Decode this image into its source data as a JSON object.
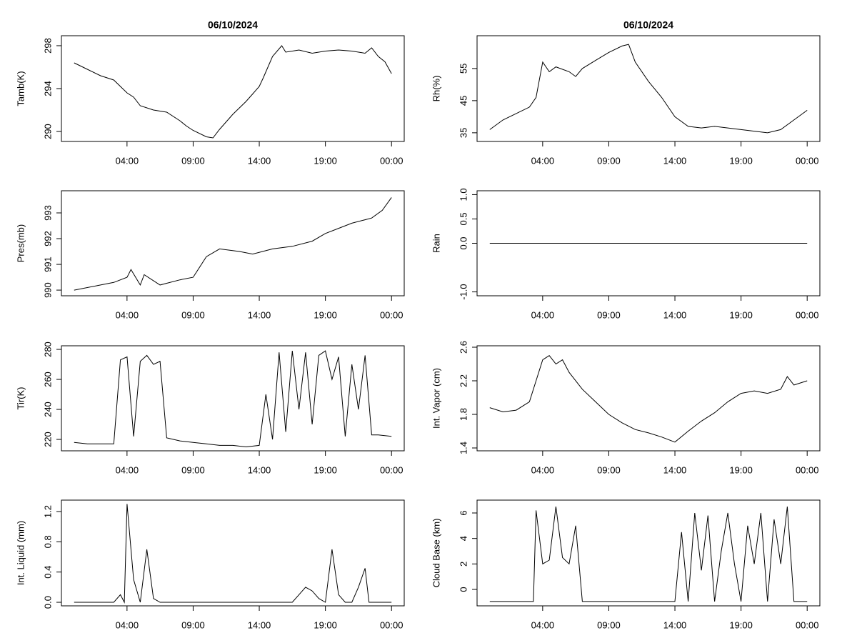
{
  "chart_data": [
    {
      "type": "line",
      "title": "06/10/2024",
      "ylabel": "Tamb(K)",
      "color": "#000000",
      "x": [
        0,
        1,
        2,
        3,
        4,
        4.5,
        5,
        6,
        7,
        8,
        8.5,
        9,
        10,
        10.5,
        11,
        12,
        13,
        13.5,
        14,
        14.3,
        15,
        15.7,
        16,
        17,
        18,
        19,
        20,
        21,
        22,
        22.5,
        23,
        23.5,
        24
      ],
      "values": [
        296.4,
        295.8,
        295.2,
        294.8,
        293.6,
        293.2,
        292.4,
        292,
        291.8,
        291,
        290.5,
        290.1,
        289.5,
        289.4,
        290.2,
        291.6,
        292.8,
        293.5,
        294.2,
        295,
        297,
        298,
        297.4,
        297.6,
        297.3,
        297.5,
        297.6,
        297.5,
        297.3,
        297.8,
        297,
        296.5,
        295.4
      ],
      "xlim": [
        -0.96,
        24.96
      ],
      "ylim": [
        289.07,
        298.93
      ],
      "xticks": [
        {
          "value": 4,
          "label": "04:00"
        },
        {
          "value": 9,
          "label": "09:00"
        },
        {
          "value": 14,
          "label": "14:00"
        },
        {
          "value": 19,
          "label": "19:00"
        },
        {
          "value": 24,
          "label": "00:00"
        }
      ],
      "yticks": [
        290,
        294,
        298
      ]
    },
    {
      "type": "line",
      "title": "06/10/2024",
      "ylabel": "Rh(%)",
      "color": "#000000",
      "x": [
        0,
        1,
        2,
        3,
        3.5,
        4,
        4.5,
        5,
        6,
        6.5,
        7,
        8,
        9,
        10,
        10.5,
        11,
        12,
        13,
        14,
        15,
        16,
        17,
        18,
        19,
        20,
        21,
        22,
        23,
        24
      ],
      "values": [
        36,
        39,
        41,
        43,
        46,
        57,
        54,
        55.5,
        54,
        52.5,
        55,
        57.5,
        60,
        62,
        62.5,
        57,
        51,
        46,
        40,
        37,
        36.5,
        37,
        36.5,
        36,
        35.5,
        35,
        36,
        39,
        42
      ],
      "xlim": [
        -0.96,
        24.96
      ],
      "ylim": [
        32.3,
        65.2
      ],
      "xticks": [
        {
          "value": 4,
          "label": "04:00"
        },
        {
          "value": 9,
          "label": "09:00"
        },
        {
          "value": 14,
          "label": "14:00"
        },
        {
          "value": 19,
          "label": "19:00"
        },
        {
          "value": 24,
          "label": "00:00"
        }
      ],
      "yticks": [
        35,
        45,
        55
      ]
    },
    {
      "type": "line",
      "ylabel": "Pres(mb)",
      "color": "#000000",
      "x": [
        0,
        2,
        3,
        4,
        4.3,
        5,
        5.3,
        6.5,
        8,
        9,
        10,
        11,
        12.5,
        13.5,
        15,
        16.5,
        18,
        19,
        20,
        21,
        22.5,
        23.3,
        24
      ],
      "values": [
        990,
        990.2,
        990.3,
        990.5,
        990.8,
        990.2,
        990.6,
        990.2,
        990.4,
        990.5,
        991.3,
        991.6,
        991.5,
        991.4,
        991.6,
        991.7,
        991.9,
        992.2,
        992.4,
        992.6,
        992.8,
        993.1,
        993.6
      ],
      "xlim": [
        -0.96,
        24.96
      ],
      "ylim": [
        989.78,
        993.86
      ],
      "xticks": [
        {
          "value": 4,
          "label": "04:00"
        },
        {
          "value": 9,
          "label": "09:00"
        },
        {
          "value": 14,
          "label": "14:00"
        },
        {
          "value": 19,
          "label": "19:00"
        },
        {
          "value": 24,
          "label": "00:00"
        }
      ],
      "yticks": [
        990,
        991,
        992,
        993
      ]
    },
    {
      "type": "line",
      "ylabel": "Rain",
      "color": "#000000",
      "x": [
        0,
        24
      ],
      "values": [
        0,
        0
      ],
      "xlim": [
        -0.96,
        24.96
      ],
      "ylim": [
        -1.08,
        1.08
      ],
      "xticks": [
        {
          "value": 4,
          "label": "04:00"
        },
        {
          "value": 9,
          "label": "09:00"
        },
        {
          "value": 14,
          "label": "14:00"
        },
        {
          "value": 19,
          "label": "19:00"
        },
        {
          "value": 24,
          "label": "00:00"
        }
      ],
      "yticks": [
        {
          "value": -1,
          "label": "-1.0"
        },
        {
          "value": 0,
          "label": "0.0"
        },
        0.5,
        {
          "value": 1,
          "label": "1.0"
        }
      ]
    },
    {
      "type": "line",
      "ylabel": "Tir(K)",
      "color": "#000000",
      "x": [
        0,
        1,
        2,
        3,
        3.5,
        4,
        4.5,
        5,
        5.5,
        6,
        6.5,
        7,
        7.5,
        8,
        9,
        10,
        11,
        12,
        13,
        14,
        14.5,
        15,
        15.5,
        16,
        16.5,
        17,
        17.5,
        18,
        18.5,
        19,
        19.5,
        20,
        20.5,
        21,
        21.5,
        22,
        22.5,
        23,
        24
      ],
      "values": [
        218,
        217,
        217,
        217,
        273,
        275,
        222,
        272,
        276,
        270,
        272,
        221,
        220,
        219,
        218,
        217,
        216,
        216,
        215,
        216,
        250,
        220,
        278,
        225,
        279,
        240,
        278,
        230,
        276,
        279,
        260,
        275,
        222,
        270,
        240,
        276,
        223,
        223,
        222
      ],
      "xlim": [
        -0.96,
        24.96
      ],
      "ylim": [
        212.4,
        282.4
      ],
      "xticks": [
        {
          "value": 4,
          "label": "04:00"
        },
        {
          "value": 9,
          "label": "09:00"
        },
        {
          "value": 14,
          "label": "14:00"
        },
        {
          "value": 19,
          "label": "19:00"
        },
        {
          "value": 24,
          "label": "00:00"
        }
      ],
      "yticks": [
        220,
        240,
        260,
        280
      ]
    },
    {
      "type": "line",
      "ylabel": "Int. Vapor (cm)",
      "color": "#000000",
      "x": [
        0,
        1,
        2,
        3,
        3.5,
        4,
        4.5,
        5,
        5.5,
        6,
        7,
        8,
        9,
        10,
        11,
        12,
        13,
        14,
        15,
        16,
        17,
        18,
        19,
        20,
        21,
        22,
        22.5,
        23,
        24
      ],
      "values": [
        1.88,
        1.83,
        1.85,
        1.95,
        2.2,
        2.45,
        2.5,
        2.4,
        2.45,
        2.3,
        2.1,
        1.95,
        1.8,
        1.7,
        1.62,
        1.58,
        1.53,
        1.47,
        1.6,
        1.72,
        1.82,
        1.95,
        2.05,
        2.08,
        2.05,
        2.1,
        2.25,
        2.15,
        2.2
      ],
      "xlim": [
        -0.96,
        24.96
      ],
      "ylim": [
        1.366,
        2.617
      ],
      "xticks": [
        {
          "value": 4,
          "label": "04:00"
        },
        {
          "value": 9,
          "label": "09:00"
        },
        {
          "value": 14,
          "label": "14:00"
        },
        {
          "value": 19,
          "label": "19:00"
        },
        {
          "value": 24,
          "label": "00:00"
        }
      ],
      "yticks": [
        1.4,
        1.8,
        2.2,
        2.6
      ]
    },
    {
      "type": "line",
      "ylabel": "Int. Liquid (mm)",
      "color": "#000000",
      "x": [
        0,
        3,
        3.5,
        3.8,
        4,
        4.3,
        4.5,
        5,
        5.5,
        6,
        6.5,
        16.5,
        17,
        17.5,
        18,
        18.5,
        19,
        19.5,
        20,
        20.5,
        21,
        21.5,
        22,
        22.3,
        24
      ],
      "values": [
        0,
        0,
        0.1,
        0,
        1.3,
        0.7,
        0.3,
        0,
        0.7,
        0.05,
        0,
        0,
        0.1,
        0.2,
        0.15,
        0.05,
        0,
        0.7,
        0.1,
        0,
        0,
        0.2,
        0.45,
        0,
        0
      ],
      "xlim": [
        -0.96,
        24.96
      ],
      "ylim": [
        -0.047,
        1.351
      ],
      "xticks": [
        {
          "value": 4,
          "label": "04:00"
        },
        {
          "value": 9,
          "label": "09:00"
        },
        {
          "value": 14,
          "label": "14:00"
        },
        {
          "value": 19,
          "label": "19:00"
        },
        {
          "value": 24,
          "label": "00:00"
        }
      ],
      "yticks": [
        {
          "value": 0,
          "label": "0.0"
        },
        0.4,
        0.8,
        1.2
      ]
    },
    {
      "type": "line",
      "ylabel": "Cloud Base (km)",
      "color": "#000000",
      "x": [
        0,
        3.3,
        3.5,
        4,
        4.5,
        5,
        5.5,
        6,
        6.5,
        7,
        14,
        14.5,
        15,
        15.5,
        16,
        16.5,
        17,
        17.5,
        18,
        18.5,
        19,
        19.5,
        20,
        20.5,
        21,
        21.5,
        22,
        22.5,
        23,
        24
      ],
      "values": [
        -0.95,
        -0.95,
        6.2,
        2,
        2.3,
        6.5,
        2.5,
        2,
        5,
        -0.95,
        -0.95,
        4.5,
        -0.95,
        6,
        1.5,
        5.8,
        -0.95,
        3,
        6,
        2,
        -0.95,
        5,
        2,
        6,
        -0.95,
        5.5,
        2,
        6.5,
        -0.95,
        -0.95
      ],
      "xlim": [
        -0.96,
        24.96
      ],
      "ylim": [
        -1.29,
        7.01
      ],
      "xticks": [
        {
          "value": 4,
          "label": "04:00"
        },
        {
          "value": 9,
          "label": "09:00"
        },
        {
          "value": 14,
          "label": "14:00"
        },
        {
          "value": 19,
          "label": "19:00"
        },
        {
          "value": 24,
          "label": "00:00"
        }
      ],
      "yticks": [
        0,
        2,
        4,
        6
      ]
    }
  ]
}
